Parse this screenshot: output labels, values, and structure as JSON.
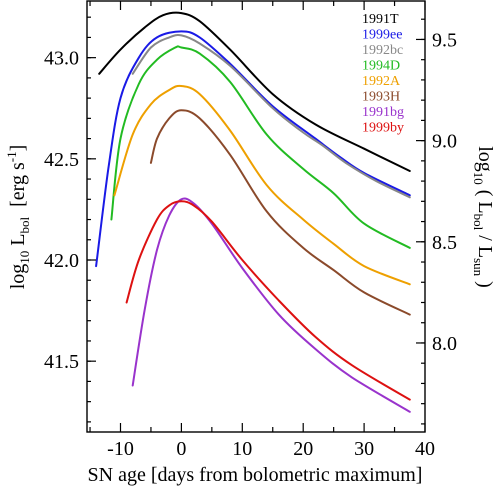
{
  "chart_data": {
    "type": "line",
    "xlabel": "SN age [days from bolometric maximum]",
    "ylabel_left": {
      "main": "log",
      "sub1": "10",
      "mid": " L",
      "sub2": "bol",
      "tail": "  [erg s",
      "sup": "-1",
      "end": "]"
    },
    "ylabel_right": {
      "main": "log",
      "sub1": "10",
      "mid": " ( L",
      "sub2": "bol",
      "slash": " / L",
      "sub3": "sun",
      "end": " )"
    },
    "xlim": [
      -15.5,
      40
    ],
    "ylim_left": [
      41.15,
      43.28
    ],
    "ylim_right_offset": 33.59,
    "x_ticks": [
      -10,
      0,
      10,
      20,
      30,
      40
    ],
    "x_tick_labels": [
      "-10",
      "0",
      "10",
      "20",
      "30",
      "40"
    ],
    "y_ticks_left": [
      41.5,
      42.0,
      42.5,
      43.0
    ],
    "y_tick_labels_left": [
      "41.5",
      "42.0",
      "42.5",
      "43.0"
    ],
    "y_ticks_right": [
      8.0,
      8.5,
      9.0,
      9.5
    ],
    "y_tick_labels_right": [
      "8.0",
      "8.5",
      "9.0",
      "9.5"
    ],
    "series": [
      {
        "name": "1991T",
        "color": "#000000",
        "x": [
          -13.5,
          -10,
          -6,
          -3,
          0,
          3,
          8,
          15,
          22,
          30,
          37.5
        ],
        "y": [
          42.92,
          43.04,
          43.15,
          43.21,
          43.22,
          43.18,
          43.04,
          42.82,
          42.67,
          42.55,
          42.44
        ]
      },
      {
        "name": "1999ee",
        "color": "#1a1ae6",
        "x": [
          -14,
          -12,
          -10,
          -7,
          -4,
          0,
          3,
          8,
          15,
          22,
          26,
          30,
          37.5
        ],
        "y": [
          41.97,
          42.45,
          42.8,
          43.0,
          43.1,
          43.13,
          43.1,
          42.97,
          42.76,
          42.6,
          42.51,
          42.43,
          42.32
        ]
      },
      {
        "name": "1992bc",
        "color": "#888888",
        "x": [
          -8,
          -5,
          -2,
          0,
          3,
          8,
          15,
          20,
          23,
          27,
          32,
          37.5
        ],
        "y": [
          42.92,
          43.05,
          43.1,
          43.11,
          43.07,
          42.96,
          42.75,
          42.63,
          42.57,
          42.48,
          42.39,
          42.31
        ]
      },
      {
        "name": "1994D",
        "color": "#22bb22",
        "x": [
          -11.5,
          -10,
          -7,
          -4,
          -1,
          0,
          3,
          8,
          14,
          20,
          25,
          30,
          37.5
        ],
        "y": [
          42.2,
          42.6,
          42.87,
          42.99,
          43.05,
          43.05,
          43.02,
          42.88,
          42.62,
          42.45,
          42.33,
          42.18,
          42.06
        ]
      },
      {
        "name": "1992A",
        "color": "#eea000",
        "x": [
          -11,
          -8,
          -5,
          -2,
          0,
          3,
          8,
          14,
          20,
          25,
          30,
          37.5
        ],
        "y": [
          42.32,
          42.62,
          42.77,
          42.84,
          42.86,
          42.82,
          42.64,
          42.37,
          42.2,
          42.08,
          41.97,
          41.88
        ]
      },
      {
        "name": "1993H",
        "color": "#8b4a2b",
        "x": [
          -5,
          -4,
          -2,
          0,
          3,
          8,
          14,
          20,
          25,
          30,
          37.5
        ],
        "y": [
          42.48,
          42.6,
          42.7,
          42.74,
          42.7,
          42.52,
          42.24,
          42.06,
          41.95,
          41.84,
          41.73
        ]
      },
      {
        "name": "1991bg",
        "color": "#9933cc",
        "x": [
          -8,
          -6,
          -4,
          -2,
          0,
          2,
          5,
          10,
          16,
          22,
          28,
          37.5
        ],
        "y": [
          41.38,
          41.76,
          42.05,
          42.22,
          42.3,
          42.28,
          42.18,
          41.96,
          41.73,
          41.56,
          41.42,
          41.25
        ]
      },
      {
        "name": "1999by",
        "color": "#dd1111",
        "x": [
          -9,
          -7,
          -4,
          -2,
          0,
          2,
          5,
          10,
          16,
          22,
          28,
          37.5
        ],
        "y": [
          41.79,
          42.0,
          42.2,
          42.27,
          42.29,
          42.27,
          42.19,
          42.0,
          41.8,
          41.62,
          41.48,
          41.31
        ]
      }
    ]
  }
}
